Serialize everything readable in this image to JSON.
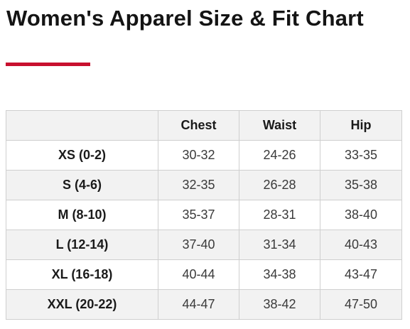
{
  "page": {
    "title": "Women's Apparel Size & Fit Chart",
    "accent_color": "#c8102e"
  },
  "table": {
    "headers": [
      "",
      "Chest",
      "Waist",
      "Hip"
    ],
    "rows": [
      [
        "XS (0-2)",
        "30-32",
        "24-26",
        "33-35"
      ],
      [
        "S (4-6)",
        "32-35",
        "26-28",
        "35-38"
      ],
      [
        "M (8-10)",
        "35-37",
        "28-31",
        "38-40"
      ],
      [
        "L (12-14)",
        "37-40",
        "31-34",
        "40-43"
      ],
      [
        "XL (16-18)",
        "40-44",
        "34-38",
        "43-47"
      ],
      [
        "XXL (20-22)",
        "44-47",
        "38-42",
        "47-50"
      ]
    ]
  }
}
